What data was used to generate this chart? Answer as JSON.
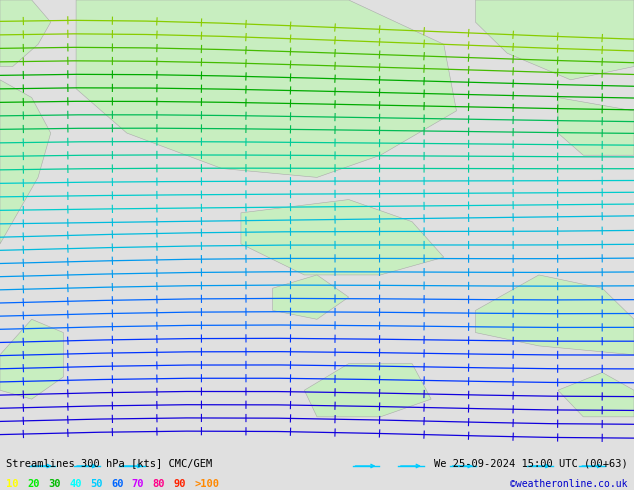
{
  "title_left": "Streamlines 300 hPa [kts] CMC/GEM",
  "title_right": "We 25-09-2024 15:00 UTC (00+63)",
  "credit": "©weatheronline.co.uk",
  "legend_values": [
    "10",
    "20",
    "30",
    "40",
    "50",
    "60",
    "70",
    "80",
    "90",
    ">100"
  ],
  "legend_colors": [
    "#ffff00",
    "#00ee00",
    "#00bb00",
    "#00ffff",
    "#00ccff",
    "#0066ff",
    "#cc00ff",
    "#ff0088",
    "#ff2200",
    "#ff8800"
  ],
  "bg_color": "#e0e0e0",
  "land_color": "#c8eec0",
  "land_edge_color": "#aaaaaa",
  "ocean_color": "#e8e8e8",
  "fig_width": 6.34,
  "fig_height": 4.9,
  "dpi": 100,
  "bottom_bar_color": "#e8e8e8",
  "title_color": "#000000",
  "credit_color": "#0000cc",
  "streamline_count": 32,
  "arrow_marker": "+",
  "colors_by_speed": {
    "very_slow": "#2200ee",
    "slow": "#0055ff",
    "medium_slow": "#0099ff",
    "medium": "#00ccff",
    "medium_fast": "#00ddcc",
    "fast": "#00cc88",
    "very_fast": "#00bb00",
    "super_fast": "#88cc00"
  }
}
